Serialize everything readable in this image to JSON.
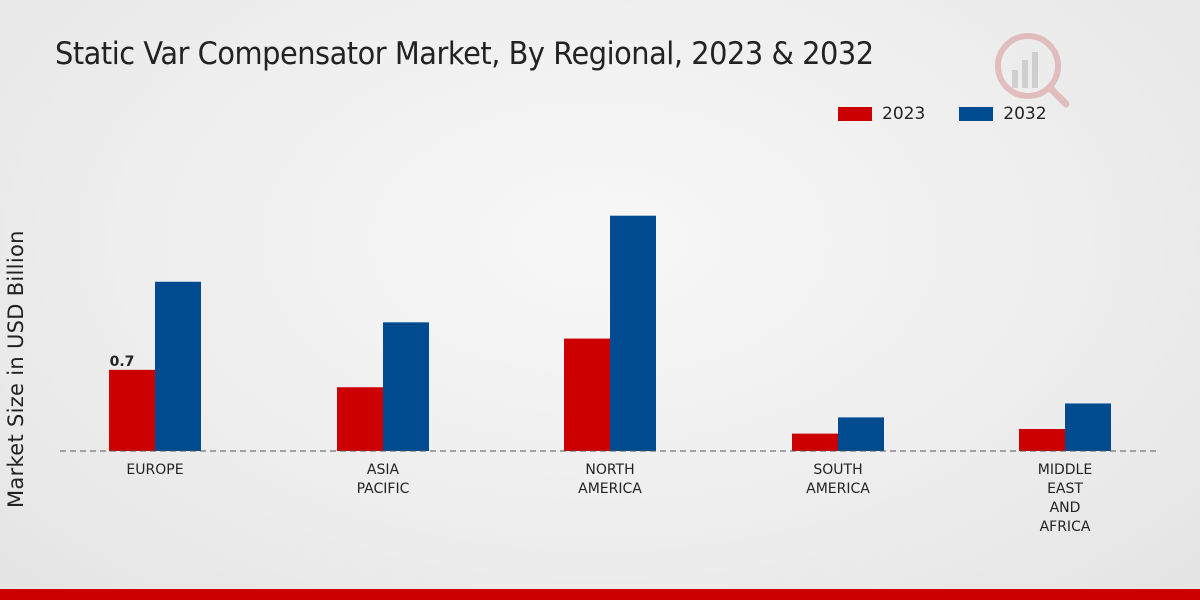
{
  "chart_data": {
    "type": "bar",
    "title": "Static Var Compensator Market, By Regional, 2023 & 2032",
    "ylabel": "Market Size in USD Billion",
    "xlabel": "",
    "categories": [
      [
        "EUROPE"
      ],
      [
        "ASIA",
        "PACIFIC"
      ],
      [
        "NORTH",
        "AMERICA"
      ],
      [
        "SOUTH",
        "AMERICA"
      ],
      [
        "MIDDLE",
        "EAST",
        "AND",
        "AFRICA"
      ]
    ],
    "series": [
      {
        "name": "2023",
        "color": "#cc0000",
        "values": [
          0.7,
          0.55,
          0.97,
          0.15,
          0.19
        ]
      },
      {
        "name": "2032",
        "color": "#004a8f",
        "values": [
          1.46,
          1.11,
          2.03,
          0.29,
          0.41
        ]
      }
    ],
    "data_labels": [
      {
        "series": 0,
        "category": 0,
        "text": "0.7"
      }
    ],
    "ylim": [
      0,
      2.2
    ],
    "grid": false,
    "legend_position": "top-right"
  }
}
